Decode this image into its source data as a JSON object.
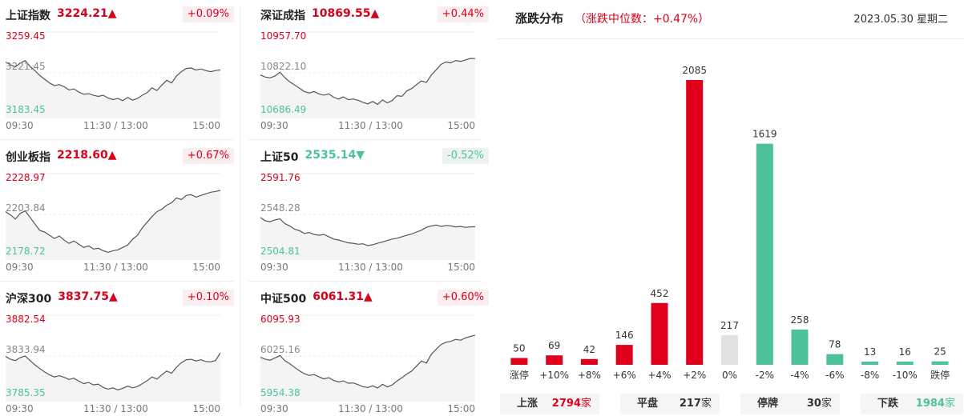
{
  "indices": [
    {
      "name": "上证指数",
      "price": "3224.21",
      "arrow": "▲",
      "direction": "up",
      "change_pct": "+0.09%",
      "high_label": "3259.45",
      "mid_label": "3221.45",
      "low_label": "3183.45",
      "time_start": "09:30",
      "time_mid": "11:30 / 13:00",
      "time_end": "15:00",
      "levels": [
        3231.5,
        3229.0,
        3227.0,
        3230.5,
        3232.8,
        3227.5,
        3223.5,
        3219.0,
        3215.5,
        3212.0,
        3209.5,
        3210.5,
        3208.5,
        3205.5,
        3206.5,
        3203.5,
        3201.5,
        3202.0,
        3200.5,
        3199.5,
        3200.5,
        3198.0,
        3196.5,
        3197.5,
        3195.5,
        3198.5,
        3196.0,
        3197.5,
        3200.5,
        3203.0,
        3207.5,
        3205.0,
        3210.0,
        3214.5,
        3212.0,
        3218.5,
        3222.5,
        3225.5,
        3226.0,
        3224.0,
        3225.0,
        3223.5,
        3222.5,
        3223.5,
        3224.21
      ]
    },
    {
      "name": "深证成指",
      "price": "10869.55",
      "arrow": "▲",
      "direction": "up",
      "change_pct": "+0.44%",
      "high_label": "10957.70",
      "mid_label": "10822.10",
      "low_label": "10686.49",
      "time_start": "09:30",
      "time_mid": "11:30 / 13:00",
      "time_end": "15:00",
      "levels": [
        10815,
        10808,
        10805,
        10812,
        10824,
        10806,
        10792,
        10782,
        10771,
        10760,
        10755,
        10760,
        10752,
        10748,
        10752,
        10741,
        10735,
        10742,
        10733,
        10735,
        10731,
        10724,
        10719,
        10727,
        10717,
        10732,
        10722,
        10730,
        10746,
        10744,
        10762,
        10770,
        10783,
        10795,
        10790,
        10815,
        10832,
        10850,
        10858,
        10855,
        10863,
        10860,
        10865,
        10870,
        10869.55
      ]
    },
    {
      "name": "创业板指",
      "price": "2218.60",
      "arrow": "▲",
      "direction": "up",
      "change_pct": "+0.67%",
      "high_label": "2228.97",
      "mid_label": "2203.84",
      "low_label": "2178.72",
      "time_start": "09:30",
      "time_mid": "11:30 / 13:00",
      "time_end": "15:00",
      "levels": [
        2205.5,
        2203.5,
        2201.0,
        2204.5,
        2206.0,
        2202.0,
        2198.0,
        2194.0,
        2193.0,
        2191.0,
        2189.0,
        2190.5,
        2188.0,
        2186.0,
        2187.5,
        2185.5,
        2183.5,
        2184.5,
        2182.5,
        2183.0,
        2181.5,
        2180.5,
        2181.5,
        2182.0,
        2183.5,
        2185.0,
        2188.5,
        2191.0,
        2195.5,
        2199.0,
        2202.5,
        2205.5,
        2207.0,
        2209.5,
        2211.0,
        2214.0,
        2213.0,
        2215.5,
        2216.0,
        2214.5,
        2215.5,
        2216.5,
        2217.5,
        2218.0,
        2218.6
      ]
    },
    {
      "name": "上证50",
      "price": "2535.14",
      "arrow": "▼",
      "direction": "down",
      "change_pct": "-0.52%",
      "high_label": "2591.76",
      "mid_label": "2548.28",
      "low_label": "2504.81",
      "time_start": "09:30",
      "time_mid": "11:30 / 13:00",
      "time_end": "15:00",
      "levels": [
        2545.0,
        2541.5,
        2540.5,
        2542.5,
        2543.5,
        2538.5,
        2536.0,
        2532.5,
        2531.0,
        2528.0,
        2529.0,
        2527.0,
        2526.0,
        2527.0,
        2524.5,
        2522.0,
        2521.0,
        2519.5,
        2518.0,
        2517.5,
        2516.5,
        2517.0,
        2515.0,
        2516.0,
        2517.5,
        2519.0,
        2520.5,
        2522.0,
        2523.0,
        2524.5,
        2526.0,
        2527.5,
        2529.5,
        2531.5,
        2534.5,
        2536.0,
        2537.0,
        2535.5,
        2536.5,
        2536.0,
        2535.0,
        2535.5,
        2534.5,
        2535.0,
        2535.14
      ]
    },
    {
      "name": "沪深300",
      "price": "3837.75",
      "arrow": "▲",
      "direction": "up",
      "change_pct": "+0.10%",
      "high_label": "3882.54",
      "mid_label": "3833.94",
      "low_label": "3785.35",
      "time_start": "09:30",
      "time_mid": "11:30 / 13:00",
      "time_end": "15:00",
      "levels": [
        3833.5,
        3830.0,
        3828.5,
        3832.0,
        3834.0,
        3828.5,
        3823.5,
        3819.0,
        3815.0,
        3811.5,
        3809.0,
        3810.5,
        3808.5,
        3806.0,
        3807.5,
        3804.0,
        3801.0,
        3802.5,
        3799.5,
        3800.5,
        3796.5,
        3794.5,
        3796.0,
        3793.5,
        3795.5,
        3798.0,
        3796.0,
        3797.5,
        3801.0,
        3804.5,
        3809.0,
        3806.5,
        3811.5,
        3816.0,
        3813.5,
        3820.5,
        3826.0,
        3829.5,
        3830.0,
        3828.0,
        3829.5,
        3827.5,
        3827.0,
        3828.5,
        3837.75
      ]
    },
    {
      "name": "中证500",
      "price": "6061.31",
      "arrow": "▲",
      "direction": "up",
      "change_pct": "+0.60%",
      "high_label": "6095.93",
      "mid_label": "6025.16",
      "low_label": "5954.38",
      "time_start": "09:30",
      "time_mid": "11:30 / 13:00",
      "time_end": "15:00",
      "levels": [
        6023.0,
        6019.5,
        6018.0,
        6022.0,
        6026.0,
        6017.0,
        6012.0,
        6005.5,
        5999.5,
        5994.5,
        5991.5,
        5993.0,
        5989.0,
        5985.5,
        5987.5,
        5983.0,
        5980.0,
        5982.0,
        5978.0,
        5978.5,
        5975.5,
        5972.0,
        5970.5,
        5973.5,
        5969.5,
        5976.0,
        5971.5,
        5975.0,
        5982.0,
        5987.5,
        5994.0,
        5999.0,
        6008.0,
        6016.5,
        6013.0,
        6028.0,
        6037.0,
        6045.0,
        6049.0,
        6050.5,
        6054.0,
        6052.5,
        6056.5,
        6059.0,
        6061.31
      ]
    }
  ],
  "distribution": {
    "title": "涨跌分布",
    "subtitle": "（涨跌中位数：+0.47%）",
    "date": "2023.05.30 星期二",
    "colors": {
      "up": "#e0001b",
      "flat": "#e2e2e2",
      "down": "#4cc29c"
    },
    "chart_data": {
      "type": "bar",
      "categories": [
        "涨停",
        "+10%",
        "+8%",
        "+6%",
        "+4%",
        "+2%",
        "0%",
        "-2%",
        "-4%",
        "-6%",
        "-8%",
        "-10%",
        "跌停"
      ],
      "values": [
        50,
        69,
        42,
        146,
        452,
        2085,
        217,
        1619,
        258,
        78,
        13,
        16,
        25
      ],
      "series_color_group": [
        "up",
        "up",
        "up",
        "up",
        "up",
        "up",
        "flat",
        "down",
        "down",
        "down",
        "down",
        "down",
        "down"
      ],
      "ylim": [
        0,
        2085
      ]
    },
    "summary": [
      {
        "label": "上涨",
        "value": "2794",
        "unit": "家",
        "color": "#e0001b"
      },
      {
        "label": "平盘",
        "value": "217",
        "unit": "家",
        "color": "#333333"
      },
      {
        "label": "停牌",
        "value": "30",
        "unit": "家",
        "color": "#333333"
      },
      {
        "label": "下跌",
        "value": "1984",
        "unit": "家",
        "color": "#4cc29c"
      }
    ]
  }
}
